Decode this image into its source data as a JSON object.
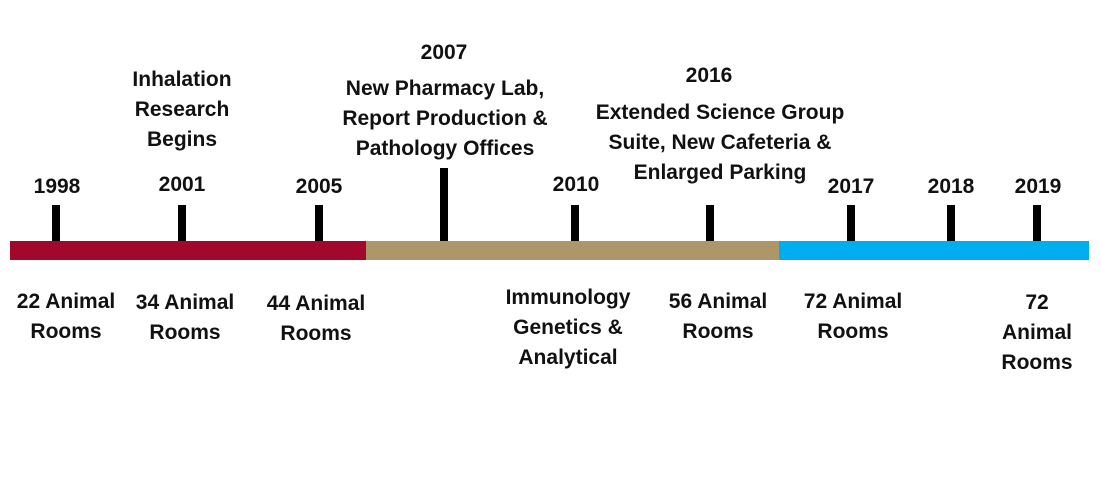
{
  "colors": {
    "segment_1": "#a2082b",
    "segment_2": "#ac966a",
    "segment_3": "#00aeef",
    "tick": "#000000"
  },
  "years": [
    "1998",
    "2001",
    "2005",
    "2007",
    "2010",
    "2016",
    "2017",
    "2018",
    "2019"
  ],
  "above_labels": {
    "y2001": "Inhalation\nResearch\nBegins",
    "y2007": "New Pharmacy Lab,\nReport Production  &\nPathology Offices",
    "y2016": "Extended Science Group\nSuite, New Cafeteria &\nEnlarged Parking"
  },
  "below_labels": {
    "y1998": "22 Animal\nRooms",
    "y2001": "34 Animal\nRooms",
    "y2005": "44 Animal\nRooms",
    "y2010": "Immunology\nGenetics &\nAnalytical",
    "y2016": "56 Animal\nRooms",
    "y2017": "72 Animal\nRooms",
    "y2019": "72 Animal\nRooms"
  }
}
